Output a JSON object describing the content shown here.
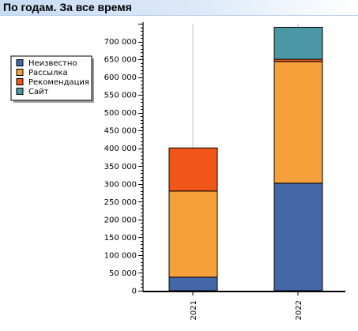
{
  "header": {
    "title": "По годам. За все время"
  },
  "legend": {
    "items": [
      {
        "label": "Неизвестно",
        "color": "#4467a7"
      },
      {
        "label": "Рассылка",
        "color": "#f5a03a"
      },
      {
        "label": "Рекомендация",
        "color": "#f15619"
      },
      {
        "label": "Сайт",
        "color": "#4b97a6"
      }
    ]
  },
  "chart_data": {
    "type": "bar",
    "stacked": true,
    "categories": [
      "2021",
      "2022"
    ],
    "series": [
      {
        "name": "Неизвестно",
        "color": "#4467a7",
        "values": [
          38000,
          302000
        ]
      },
      {
        "name": "Рассылка",
        "color": "#f5a03a",
        "values": [
          242000,
          342000
        ]
      },
      {
        "name": "Рекомендация",
        "color": "#f15619",
        "values": [
          121000,
          6000
        ]
      },
      {
        "name": "Сайт",
        "color": "#4b97a6",
        "values": [
          0,
          90000
        ]
      }
    ],
    "ylim": [
      0,
      750000
    ],
    "ytick_step": 50000,
    "ytick_labels": [
      "0",
      "50 000",
      "100 000",
      "150 000",
      "200 000",
      "250 000",
      "300 000",
      "350 000",
      "400 000",
      "450 000",
      "500 000",
      "550 000",
      "600 000",
      "650 000",
      "700 000"
    ],
    "xtick_rotation": "vertical",
    "grid": "vertical at categories",
    "legend_position": "left"
  }
}
